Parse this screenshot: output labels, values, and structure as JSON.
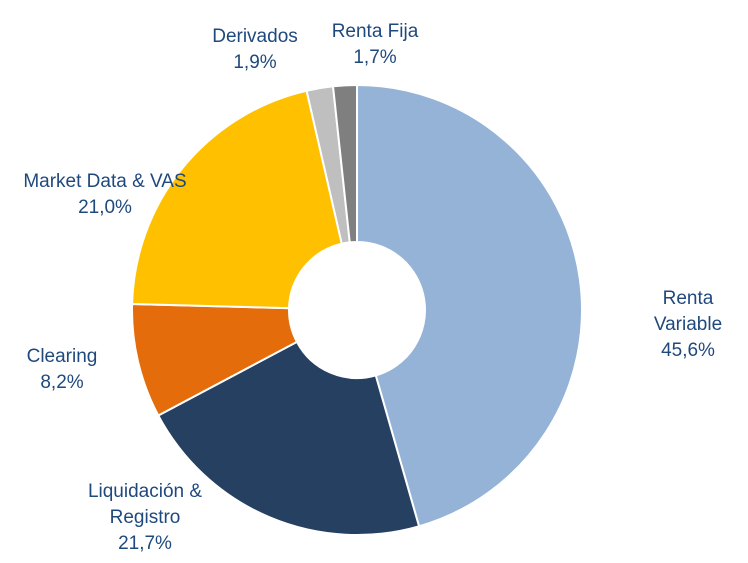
{
  "chart_data": {
    "type": "pie",
    "donut": true,
    "categories": [
      "Renta Variable",
      "Liquidación & Registro",
      "Clearing",
      "Market Data & VAS",
      "Derivados",
      "Renta Fija"
    ],
    "values": [
      45.6,
      21.7,
      8.2,
      21.0,
      1.9,
      1.7
    ],
    "value_labels": [
      "45,6%",
      "21,7%",
      "8,2%",
      "21,0%",
      "1,9%",
      "1,7%"
    ],
    "colors": [
      "#95b3d7",
      "#264061",
      "#e46c0a",
      "#ffc000",
      "#bfbfbf",
      "#7f7f7f"
    ]
  }
}
